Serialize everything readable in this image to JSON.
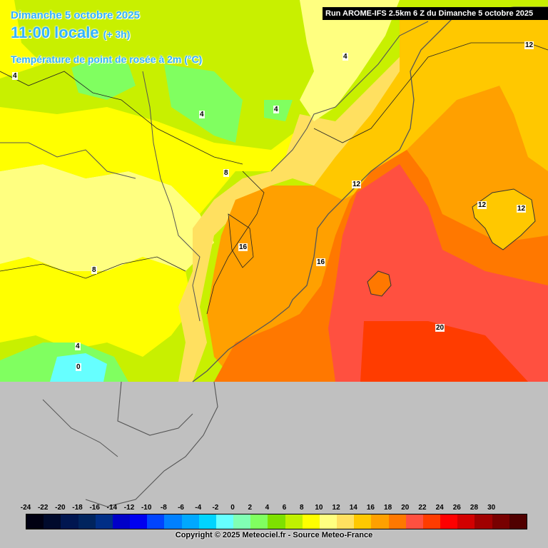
{
  "header": {
    "date": "Dimanche 5 octobre 2025",
    "time": "11:00 locale",
    "lead": "(+ 3h)",
    "parameter": "Température de point de rosée à 2m (°C)"
  },
  "run_info": "Run AROME-IFS 2.5km 6 Z du Dimanche 5 octobre 2025",
  "contour_labels": [
    "4",
    "4",
    "4",
    "4",
    "8",
    "8",
    "4",
    "0",
    "12",
    "12",
    "12",
    "12",
    "16",
    "16",
    "20"
  ],
  "color_scale": {
    "ticks": [
      "-24",
      "-22",
      "-20",
      "-18",
      "-16",
      "-14",
      "-12",
      "-10",
      "-8",
      "-6",
      "-4",
      "-2",
      "0",
      "2",
      "4",
      "6",
      "8",
      "10",
      "12",
      "14",
      "16",
      "18",
      "20",
      "22",
      "24",
      "26",
      "28",
      "30"
    ],
    "colors": [
      "#000012",
      "#000a2c",
      "#001650",
      "#00245e",
      "#002e86",
      "#0000c8",
      "#0000f0",
      "#0044ff",
      "#0080ff",
      "#00a8ff",
      "#00d4ff",
      "#66ffff",
      "#80ffb4",
      "#80ff60",
      "#7ee000",
      "#c0f000",
      "#ffff00",
      "#ffff80",
      "#ffe060",
      "#ffc800",
      "#ffa000",
      "#ff7800",
      "#ff5040",
      "#ff3c00",
      "#ff0000",
      "#d20000",
      "#a00000",
      "#780000",
      "#500000"
    ]
  },
  "copyright": "Copyright © 2025 Meteociel.fr - Source Meteo-France",
  "colors": {
    "no_data": "#c0c0c0",
    "header_text": "#33b3ff"
  }
}
